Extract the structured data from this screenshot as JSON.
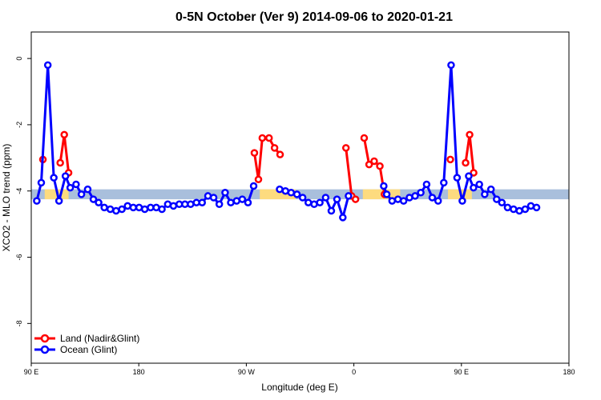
{
  "chart_data": {
    "type": "line",
    "title": "0-5N October (Ver 9)   2014-09-06 to 2020-01-21",
    "xlabel": "Longitude (deg E)",
    "ylabel": "XCO2 - MLO trend (ppm)",
    "xlim": [
      90,
      450
    ],
    "ylim": [
      -9.2,
      0.8
    ],
    "x_ticks": [
      {
        "value": 90,
        "label": "90 E"
      },
      {
        "value": 162,
        "label": "180"
      },
      {
        "value": 234,
        "label": "90 W"
      },
      {
        "value": 306,
        "label": "0"
      },
      {
        "value": 378,
        "label": "90 E"
      },
      {
        "value": 450,
        "label": "180"
      }
    ],
    "y_ticks": [
      {
        "value": 0,
        "label": "0"
      },
      {
        "value": -2,
        "label": "-2"
      },
      {
        "value": -4,
        "label": "-4"
      },
      {
        "value": -6,
        "label": "-6"
      },
      {
        "value": -8,
        "label": "-8"
      }
    ],
    "band": {
      "y_low": -4.25,
      "y_high": -3.95,
      "ocean_color": "#a9bfdc",
      "land_color": "#fddb7f",
      "land_x_ranges": [
        [
          99,
          115
        ],
        [
          243,
          267
        ],
        [
          312,
          337
        ],
        [
          369,
          385
        ]
      ]
    },
    "legend": {
      "position": "bottom-left"
    },
    "series": [
      {
        "name": "Land (Nadir&Glint)",
        "color": "#ff0000",
        "segments": [
          [
            [
              97.8,
              -3.05
            ]
          ],
          [
            [
              109.4,
              -3.15
            ],
            [
              112.1,
              -2.3
            ],
            [
              115.0,
              -3.45
            ]
          ],
          [
            [
              239.4,
              -2.85
            ],
            [
              242.1,
              -3.65
            ],
            [
              244.7,
              -2.4
            ],
            [
              249.2,
              -2.4
            ],
            [
              252.9,
              -2.7
            ],
            [
              256.6,
              -2.9
            ]
          ],
          [
            [
              300.7,
              -2.7
            ],
            [
              304.5,
              -4.15
            ],
            [
              307.1,
              -4.25
            ]
          ],
          [
            [
              312.9,
              -2.4
            ],
            [
              316.2,
              -3.2
            ],
            [
              319.6,
              -3.1
            ],
            [
              323.4,
              -3.25
            ],
            [
              326.5,
              -4.1
            ]
          ],
          [
            [
              370.6,
              -3.05
            ]
          ],
          [
            [
              380.8,
              -3.15
            ],
            [
              383.5,
              -2.3
            ],
            [
              386.2,
              -3.45
            ]
          ]
        ]
      },
      {
        "name": "Ocean (Glint)",
        "color": "#0000ff",
        "segments": [
          [
            [
              93.7,
              -4.3
            ],
            [
              96.7,
              -3.75
            ],
            [
              101.1,
              -0.2
            ],
            [
              105.1,
              -3.6
            ],
            [
              108.6,
              -4.3
            ],
            [
              112.9,
              -3.55
            ],
            [
              116.1,
              -3.9
            ],
            [
              120.0,
              -3.8
            ],
            [
              123.6,
              -4.1
            ],
            [
              127.8,
              -3.95
            ],
            [
              131.6,
              -4.25
            ],
            [
              135.1,
              -4.35
            ],
            [
              138.9,
              -4.5
            ],
            [
              142.9,
              -4.55
            ],
            [
              146.8,
              -4.6
            ],
            [
              150.7,
              -4.55
            ],
            [
              154.5,
              -4.45
            ],
            [
              158.3,
              -4.5
            ],
            [
              162.2,
              -4.5
            ],
            [
              166.0,
              -4.55
            ],
            [
              169.9,
              -4.5
            ],
            [
              173.7,
              -4.5
            ],
            [
              177.5,
              -4.55
            ],
            [
              181.4,
              -4.4
            ],
            [
              185.2,
              -4.45
            ],
            [
              189.1,
              -4.4
            ],
            [
              192.9,
              -4.4
            ],
            [
              196.7,
              -4.4
            ],
            [
              200.6,
              -4.35
            ],
            [
              204.4,
              -4.35
            ],
            [
              208.3,
              -4.15
            ],
            [
              212.1,
              -4.2
            ],
            [
              215.9,
              -4.4
            ],
            [
              219.8,
              -4.05
            ],
            [
              223.6,
              -4.35
            ],
            [
              227.5,
              -4.3
            ],
            [
              231.3,
              -4.25
            ],
            [
              235.1,
              -4.35
            ],
            [
              238.9,
              -3.85
            ]
          ],
          [
            [
              256.3,
              -3.95
            ],
            [
              260.2,
              -4.0
            ],
            [
              264.0,
              -4.05
            ],
            [
              267.9,
              -4.1
            ],
            [
              271.7,
              -4.2
            ],
            [
              275.5,
              -4.35
            ],
            [
              279.4,
              -4.4
            ],
            [
              283.2,
              -4.35
            ],
            [
              287.1,
              -4.2
            ],
            [
              290.9,
              -4.6
            ],
            [
              294.7,
              -4.25
            ],
            [
              298.6,
              -4.8
            ],
            [
              302.4,
              -4.15
            ]
          ],
          [
            [
              326.0,
              -3.85
            ],
            [
              328.0,
              -4.1
            ],
            [
              331.6,
              -4.3
            ],
            [
              335.5,
              -4.25
            ],
            [
              339.3,
              -4.3
            ],
            [
              343.2,
              -4.2
            ],
            [
              347.0,
              -4.15
            ],
            [
              350.8,
              -4.05
            ],
            [
              354.7,
              -3.8
            ],
            [
              358.5,
              -4.2
            ],
            [
              362.4,
              -4.3
            ],
            [
              366.2,
              -3.75
            ],
            [
              371.1,
              -0.2
            ],
            [
              375.1,
              -3.6
            ],
            [
              378.6,
              -4.3
            ],
            [
              382.9,
              -3.55
            ],
            [
              386.1,
              -3.9
            ],
            [
              390.0,
              -3.8
            ],
            [
              393.6,
              -4.1
            ],
            [
              397.8,
              -3.95
            ],
            [
              401.6,
              -4.25
            ],
            [
              405.1,
              -4.35
            ],
            [
              408.9,
              -4.5
            ],
            [
              412.9,
              -4.55
            ],
            [
              416.8,
              -4.6
            ],
            [
              420.7,
              -4.55
            ],
            [
              424.5,
              -4.45
            ],
            [
              428.3,
              -4.5
            ]
          ]
        ]
      }
    ]
  }
}
